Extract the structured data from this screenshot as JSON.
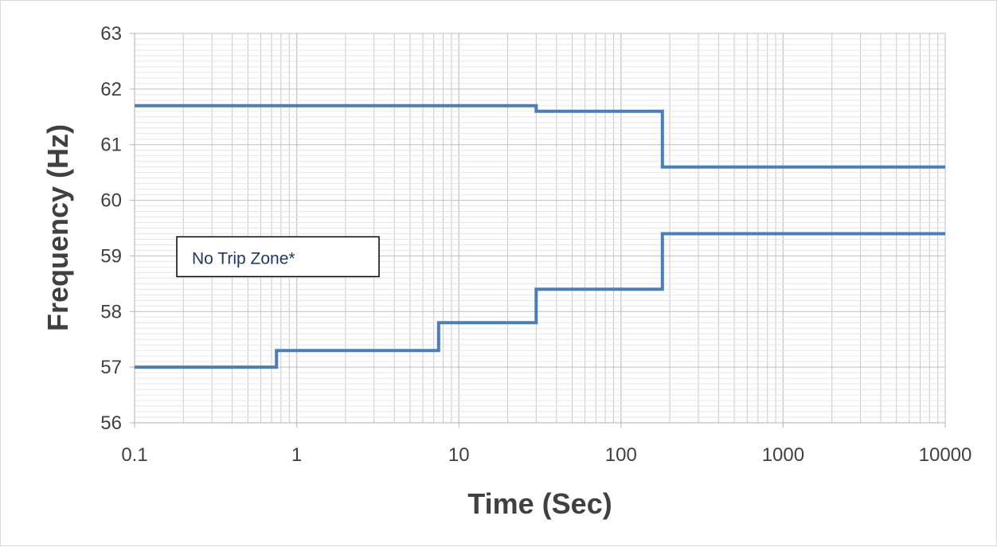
{
  "chart_data": {
    "type": "line",
    "title": "",
    "xlabel": "Time (Sec)",
    "ylabel": "Frequency (Hz)",
    "xscale": "log",
    "xlim": [
      0.1,
      10000
    ],
    "ylim": [
      56,
      63
    ],
    "x_tick_labels": [
      "0.1",
      "1",
      "10",
      "100",
      "1000",
      "10000"
    ],
    "y_tick_labels": [
      "56",
      "57",
      "58",
      "59",
      "60",
      "61",
      "62",
      "63"
    ],
    "grid": true,
    "legend": "none",
    "line_color": "#4a7ebb",
    "grid_color": "#c8c8c8",
    "series": [
      {
        "x": [
          0.1,
          30,
          30,
          180,
          180,
          10000
        ],
        "y": [
          61.7,
          61.7,
          61.6,
          61.6,
          60.6,
          60.6
        ]
      },
      {
        "x": [
          0.1,
          0.75,
          0.75,
          7.5,
          7.5,
          30,
          30,
          180,
          180,
          10000
        ],
        "y": [
          57.0,
          57.0,
          57.3,
          57.3,
          57.8,
          57.8,
          58.4,
          58.4,
          59.4,
          59.4
        ]
      }
    ],
    "annotations": [
      {
        "text": "No Trip Zone*",
        "x": 0.185,
        "y": 59.0
      }
    ]
  }
}
